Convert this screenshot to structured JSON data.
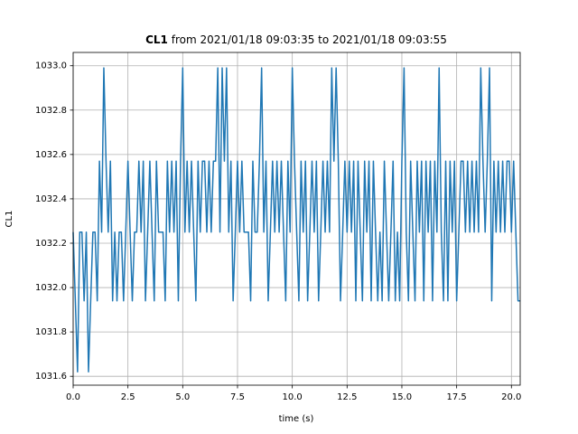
{
  "chart_data": {
    "type": "line",
    "title_name": "CL1",
    "title": "from 2021/01/18 09:03:35 to 2021/01/18 09:03:55",
    "xlabel": "time (s)",
    "ylabel": "CL1",
    "color": "#1f77b4",
    "grid": true,
    "xlim": [
      0,
      20.4
    ],
    "ylim": [
      1031.56,
      1033.06
    ],
    "xticks": [
      {
        "value": 0,
        "label": "0.0"
      },
      2.5,
      {
        "value": 5,
        "label": "5.0"
      },
      7.5,
      {
        "value": 10,
        "label": "10.0"
      },
      12.5,
      {
        "value": 15,
        "label": "15.0"
      },
      17.5,
      {
        "value": 20,
        "label": "20.0"
      }
    ],
    "yticks": [
      1031.6,
      1031.8,
      {
        "value": 1032,
        "label": "1032.0"
      },
      1032.2,
      1032.4,
      1032.6,
      1032.8,
      {
        "value": 1033,
        "label": "1033.0"
      }
    ],
    "x": [
      0,
      0.1,
      0.2,
      0.3,
      0.4,
      0.5,
      0.6,
      0.7,
      0.8,
      0.9,
      1,
      1.1,
      1.2,
      1.3,
      1.4,
      1.5,
      1.6,
      1.7,
      1.8,
      1.9,
      2,
      2.1,
      2.2,
      2.3,
      2.4,
      2.5,
      2.6,
      2.7,
      2.8,
      2.9,
      3,
      3.1,
      3.2,
      3.3,
      3.4,
      3.5,
      3.6,
      3.7,
      3.8,
      3.9,
      4,
      4.1,
      4.2,
      4.3,
      4.4,
      4.5,
      4.6,
      4.7,
      4.8,
      4.9,
      5,
      5.1,
      5.2,
      5.3,
      5.4,
      5.5,
      5.6,
      5.7,
      5.8,
      5.9,
      6,
      6.1,
      6.2,
      6.3,
      6.4,
      6.5,
      6.6,
      6.7,
      6.8,
      6.9,
      7,
      7.1,
      7.2,
      7.3,
      7.4,
      7.5,
      7.6,
      7.7,
      7.8,
      7.9,
      8,
      8.1,
      8.2,
      8.3,
      8.4,
      8.5,
      8.6,
      8.7,
      8.8,
      8.9,
      9,
      9.1,
      9.2,
      9.3,
      9.4,
      9.5,
      9.6,
      9.7,
      9.8,
      9.9,
      10,
      10.1,
      10.2,
      10.3,
      10.4,
      10.5,
      10.6,
      10.7,
      10.8,
      10.9,
      11,
      11.1,
      11.2,
      11.3,
      11.4,
      11.5,
      11.6,
      11.7,
      11.8,
      11.9,
      12,
      12.1,
      12.2,
      12.3,
      12.4,
      12.5,
      12.6,
      12.7,
      12.8,
      12.9,
      13,
      13.1,
      13.2,
      13.3,
      13.4,
      13.5,
      13.6,
      13.7,
      13.8,
      13.9,
      14,
      14.1,
      14.2,
      14.3,
      14.4,
      14.5,
      14.6,
      14.7,
      14.8,
      14.9,
      15,
      15.1,
      15.2,
      15.3,
      15.4,
      15.5,
      15.6,
      15.7,
      15.8,
      15.9,
      16,
      16.1,
      16.2,
      16.3,
      16.4,
      16.5,
      16.6,
      16.7,
      16.8,
      16.9,
      17,
      17.1,
      17.2,
      17.3,
      17.4,
      17.5,
      17.6,
      17.7,
      17.8,
      17.9,
      18,
      18.1,
      18.2,
      18.3,
      18.4,
      18.5,
      18.6,
      18.7,
      18.8,
      18.9,
      19,
      19.1,
      19.2,
      19.3,
      19.4,
      19.5,
      19.6,
      19.7,
      19.8,
      19.9,
      20,
      20.1,
      20.2,
      20.3,
      20.4
    ],
    "values": [
      1032.25,
      1031.94,
      1031.62,
      1032.25,
      1032.25,
      1031.94,
      1032.25,
      1031.62,
      1031.94,
      1032.25,
      1032.25,
      1031.94,
      1032.57,
      1032.25,
      1032.99,
      1032.57,
      1032.25,
      1032.57,
      1031.94,
      1032.25,
      1031.94,
      1032.25,
      1032.25,
      1031.94,
      1032.25,
      1032.57,
      1032.25,
      1031.94,
      1032.25,
      1032.25,
      1032.57,
      1032.25,
      1032.57,
      1031.94,
      1032.25,
      1032.57,
      1032.25,
      1031.94,
      1032.57,
      1032.25,
      1032.25,
      1032.25,
      1031.94,
      1032.57,
      1032.25,
      1032.57,
      1032.25,
      1032.57,
      1031.94,
      1032.57,
      1032.99,
      1032.25,
      1032.57,
      1032.25,
      1032.57,
      1032.25,
      1031.94,
      1032.57,
      1032.25,
      1032.57,
      1032.57,
      1032.25,
      1032.57,
      1032.25,
      1032.57,
      1032.57,
      1032.99,
      1032.25,
      1032.99,
      1032.57,
      1032.99,
      1032.25,
      1032.57,
      1031.94,
      1032.25,
      1032.57,
      1032.25,
      1032.57,
      1032.25,
      1032.25,
      1032.25,
      1031.94,
      1032.57,
      1032.25,
      1032.25,
      1032.57,
      1032.99,
      1032.25,
      1032.57,
      1031.94,
      1032.25,
      1032.57,
      1032.25,
      1032.57,
      1032.25,
      1032.57,
      1032.25,
      1031.94,
      1032.57,
      1032.25,
      1032.99,
      1032.57,
      1032.25,
      1031.94,
      1032.57,
      1032.25,
      1032.57,
      1031.94,
      1032.25,
      1032.57,
      1032.25,
      1032.57,
      1031.94,
      1032.25,
      1032.57,
      1032.25,
      1032.57,
      1032.25,
      1032.99,
      1032.57,
      1032.99,
      1032.57,
      1031.94,
      1032.25,
      1032.57,
      1032.25,
      1032.57,
      1032.25,
      1032.57,
      1031.94,
      1032.57,
      1032.25,
      1031.94,
      1032.57,
      1032.25,
      1032.57,
      1031.94,
      1032.57,
      1032.25,
      1031.94,
      1032.25,
      1031.94,
      1032.57,
      1032.25,
      1031.94,
      1032.25,
      1032.57,
      1031.94,
      1032.25,
      1031.94,
      1032.57,
      1032.99,
      1032.25,
      1031.94,
      1032.57,
      1032.25,
      1031.94,
      1032.57,
      1032.25,
      1032.57,
      1031.94,
      1032.57,
      1032.25,
      1032.57,
      1031.94,
      1032.57,
      1032.25,
      1032.99,
      1032.25,
      1031.94,
      1032.57,
      1031.94,
      1032.57,
      1032.25,
      1032.57,
      1031.94,
      1032.25,
      1032.57,
      1032.57,
      1032.25,
      1032.57,
      1032.25,
      1032.57,
      1032.25,
      1032.57,
      1032.25,
      1032.99,
      1032.57,
      1032.25,
      1032.57,
      1032.99,
      1031.94,
      1032.57,
      1032.25,
      1032.57,
      1032.25,
      1032.57,
      1032.25,
      1032.57,
      1032.57,
      1032.25,
      1032.57,
      1032.25,
      1031.94,
      1031.94
    ]
  }
}
